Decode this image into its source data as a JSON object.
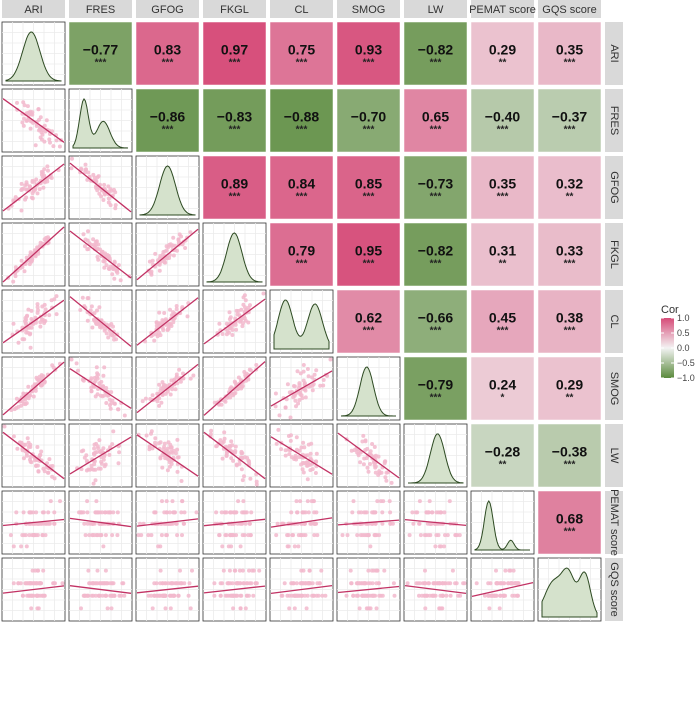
{
  "chart_data": {
    "type": "heatmap",
    "variables": [
      "ARI",
      "FRES",
      "GFOG",
      "FKGL",
      "CL",
      "SMOG",
      "LW",
      "PEMAT score",
      "GQS score"
    ],
    "lower_panels": "scatter with linear fit",
    "diagonal_panels": "density",
    "correlations": [
      {
        "row": "ARI",
        "col": "FRES",
        "label": "−0.77",
        "value": -0.77,
        "stars": "***"
      },
      {
        "row": "ARI",
        "col": "GFOG",
        "label": "0.83",
        "value": 0.83,
        "stars": "***"
      },
      {
        "row": "ARI",
        "col": "FKGL",
        "label": "0.97",
        "value": 0.97,
        "stars": "***"
      },
      {
        "row": "ARI",
        "col": "CL",
        "label": "0.75",
        "value": 0.75,
        "stars": "***"
      },
      {
        "row": "ARI",
        "col": "SMOG",
        "label": "0.93",
        "value": 0.93,
        "stars": "***"
      },
      {
        "row": "ARI",
        "col": "LW",
        "label": "−0.82",
        "value": -0.82,
        "stars": "***"
      },
      {
        "row": "ARI",
        "col": "PEMAT score",
        "label": "0.29",
        "value": 0.29,
        "stars": "**"
      },
      {
        "row": "ARI",
        "col": "GQS score",
        "label": "0.35",
        "value": 0.35,
        "stars": "***"
      },
      {
        "row": "FRES",
        "col": "GFOG",
        "label": "−0.86",
        "value": -0.86,
        "stars": "***"
      },
      {
        "row": "FRES",
        "col": "FKGL",
        "label": "−0.83",
        "value": -0.83,
        "stars": "***"
      },
      {
        "row": "FRES",
        "col": "CL",
        "label": "−0.88",
        "value": -0.88,
        "stars": "***"
      },
      {
        "row": "FRES",
        "col": "SMOG",
        "label": "−0.70",
        "value": -0.7,
        "stars": "***"
      },
      {
        "row": "FRES",
        "col": "LW",
        "label": "0.65",
        "value": 0.65,
        "stars": "***"
      },
      {
        "row": "FRES",
        "col": "PEMAT score",
        "label": "−0.40",
        "value": -0.4,
        "stars": "***"
      },
      {
        "row": "FRES",
        "col": "GQS score",
        "label": "−0.37",
        "value": -0.37,
        "stars": "***"
      },
      {
        "row": "GFOG",
        "col": "FKGL",
        "label": "0.89",
        "value": 0.89,
        "stars": "***"
      },
      {
        "row": "GFOG",
        "col": "CL",
        "label": "0.84",
        "value": 0.84,
        "stars": "***"
      },
      {
        "row": "GFOG",
        "col": "SMOG",
        "label": "0.85",
        "value": 0.85,
        "stars": "***"
      },
      {
        "row": "GFOG",
        "col": "LW",
        "label": "−0.73",
        "value": -0.73,
        "stars": "***"
      },
      {
        "row": "GFOG",
        "col": "PEMAT score",
        "label": "0.35",
        "value": 0.35,
        "stars": "***"
      },
      {
        "row": "GFOG",
        "col": "GQS score",
        "label": "0.32",
        "value": 0.32,
        "stars": "**"
      },
      {
        "row": "FKGL",
        "col": "CL",
        "label": "0.79",
        "value": 0.79,
        "stars": "***"
      },
      {
        "row": "FKGL",
        "col": "SMOG",
        "label": "0.95",
        "value": 0.95,
        "stars": "***"
      },
      {
        "row": "FKGL",
        "col": "LW",
        "label": "−0.82",
        "value": -0.82,
        "stars": "***"
      },
      {
        "row": "FKGL",
        "col": "PEMAT score",
        "label": "0.31",
        "value": 0.31,
        "stars": "**"
      },
      {
        "row": "FKGL",
        "col": "GQS score",
        "label": "0.33",
        "value": 0.33,
        "stars": "***"
      },
      {
        "row": "CL",
        "col": "SMOG",
        "label": "0.62",
        "value": 0.62,
        "stars": "***"
      },
      {
        "row": "CL",
        "col": "LW",
        "label": "−0.66",
        "value": -0.66,
        "stars": "***"
      },
      {
        "row": "CL",
        "col": "PEMAT score",
        "label": "0.45",
        "value": 0.45,
        "stars": "***"
      },
      {
        "row": "CL",
        "col": "GQS score",
        "label": "0.38",
        "value": 0.38,
        "stars": "***"
      },
      {
        "row": "SMOG",
        "col": "LW",
        "label": "−0.79",
        "value": -0.79,
        "stars": "***"
      },
      {
        "row": "SMOG",
        "col": "PEMAT score",
        "label": "0.24",
        "value": 0.24,
        "stars": "*"
      },
      {
        "row": "SMOG",
        "col": "GQS score",
        "label": "0.29",
        "value": 0.29,
        "stars": "**"
      },
      {
        "row": "LW",
        "col": "PEMAT score",
        "label": "−0.28",
        "value": -0.28,
        "stars": "**"
      },
      {
        "row": "LW",
        "col": "GQS score",
        "label": "−0.38",
        "value": -0.38,
        "stars": "***"
      },
      {
        "row": "PEMAT score",
        "col": "GQS score",
        "label": "0.68",
        "value": 0.68,
        "stars": "***"
      }
    ],
    "legend": {
      "title": "Cor",
      "placement": "right",
      "range": [
        -1.0,
        1.0
      ],
      "ticks": [
        "1.0",
        "0.5",
        "0.0",
        "−0.5",
        "−1.0"
      ],
      "tick_values": [
        1.0,
        0.5,
        0.0,
        -0.5,
        -1.0
      ],
      "colors": {
        "low": "#5a8a3c",
        "mid": "#f3f3f3",
        "high": "#d64b78"
      }
    }
  },
  "colors": {
    "density_fill": "#d5e2cc",
    "density_line": "#2d4a22",
    "point": "#f2b9cc",
    "fit_line": "#c23264",
    "strip_bg": "#d9d9d9",
    "grid": "#ebebeb"
  }
}
